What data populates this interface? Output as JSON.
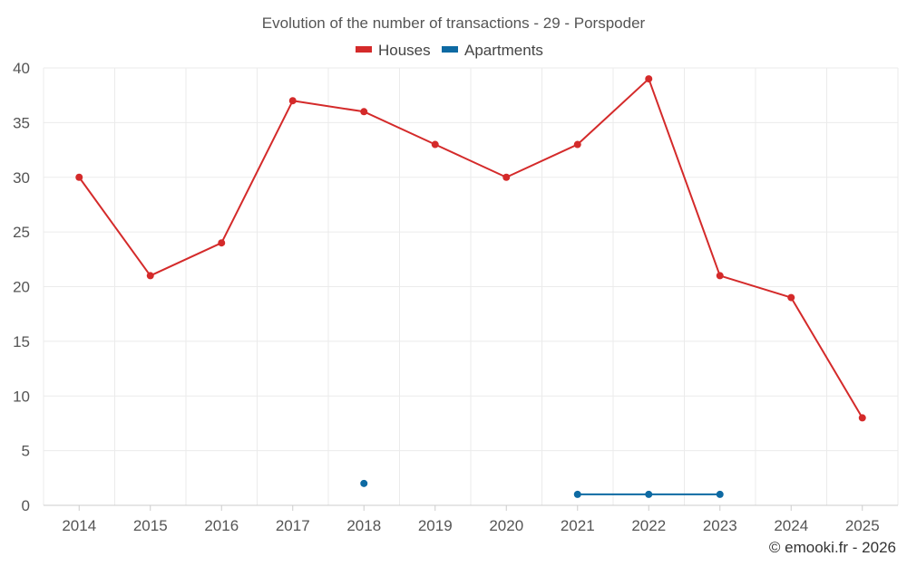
{
  "chart_data": {
    "type": "line",
    "title": "Evolution of the number of transactions - 29 - Porspoder",
    "categories": [
      "2014",
      "2015",
      "2016",
      "2017",
      "2018",
      "2019",
      "2020",
      "2021",
      "2022",
      "2023",
      "2024",
      "2025"
    ],
    "ylim": [
      0,
      40
    ],
    "yticks": [
      0,
      5,
      10,
      15,
      20,
      25,
      30,
      35,
      40
    ],
    "grid": true,
    "legend_position": "top-center",
    "series": [
      {
        "name": "Houses",
        "color": "#d42a2a",
        "values": [
          30,
          21,
          24,
          37,
          36,
          33,
          30,
          33,
          39,
          21,
          19,
          8
        ]
      },
      {
        "name": "Apartments",
        "color": "#0e6aa3",
        "values": [
          null,
          null,
          null,
          null,
          2,
          null,
          null,
          1,
          1,
          1,
          null,
          null
        ]
      }
    ]
  },
  "credit": "© emooki.fr - 2026"
}
